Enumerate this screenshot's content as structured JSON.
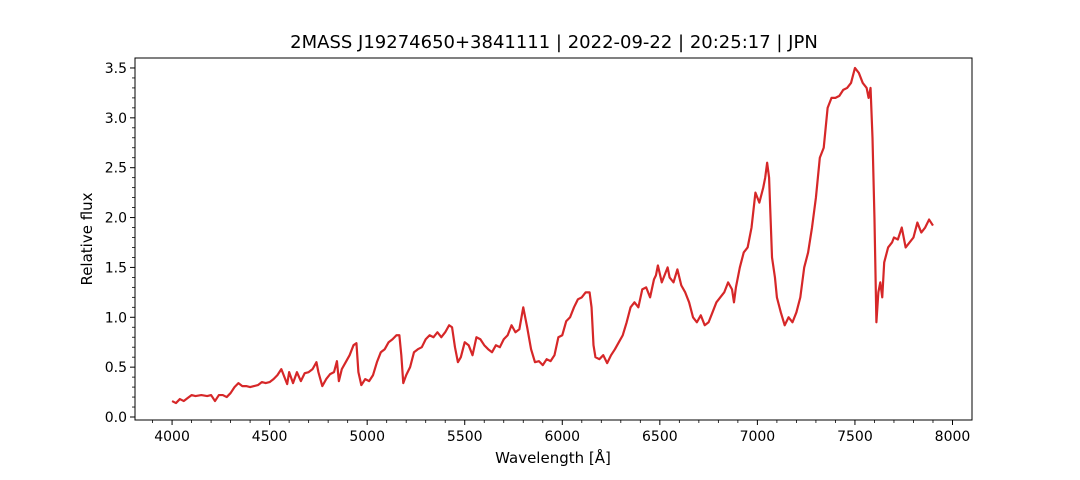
{
  "chart_data": {
    "type": "line",
    "title": "2MASS J19274650+3841111 | 2022-09-22 | 20:25:17 | JPN",
    "xlabel": "Wavelength [Å]",
    "ylabel": "Relative flux",
    "xlim": [
      3810,
      8100
    ],
    "ylim": [
      -0.03,
      3.6
    ],
    "xticks": [
      4000,
      4500,
      5000,
      5500,
      6000,
      6500,
      7000,
      7500,
      8000
    ],
    "yticks": [
      0.0,
      0.5,
      1.0,
      1.5,
      2.0,
      2.5,
      3.0,
      3.5
    ],
    "xtick_labels": [
      "4000",
      "4500",
      "5000",
      "5500",
      "6000",
      "6500",
      "7000",
      "7500",
      "8000"
    ],
    "ytick_labels": [
      "0.0",
      "0.5",
      "1.0",
      "1.5",
      "2.0",
      "2.5",
      "3.0",
      "3.5"
    ],
    "grid": false,
    "line_color": "#d62728",
    "series": [
      {
        "x": [
          4000,
          4020,
          4040,
          4060,
          4080,
          4100,
          4120,
          4150,
          4180,
          4200,
          4220,
          4240,
          4260,
          4280,
          4300,
          4320,
          4340,
          4360,
          4380,
          4400,
          4420,
          4440,
          4460,
          4480,
          4500,
          4520,
          4540,
          4560,
          4580,
          4590,
          4600,
          4620,
          4640,
          4660,
          4680,
          4700,
          4720,
          4740,
          4750,
          4770,
          4790,
          4810,
          4830,
          4845,
          4855,
          4870,
          4890,
          4910,
          4930,
          4945,
          4955,
          4970,
          4990,
          5010,
          5030,
          5050,
          5070,
          5090,
          5110,
          5130,
          5150,
          5165,
          5175,
          5185,
          5200,
          5220,
          5240,
          5260,
          5280,
          5300,
          5320,
          5340,
          5360,
          5380,
          5400,
          5420,
          5435,
          5450,
          5465,
          5480,
          5500,
          5520,
          5540,
          5560,
          5580,
          5600,
          5620,
          5640,
          5660,
          5680,
          5700,
          5720,
          5740,
          5760,
          5780,
          5800,
          5810,
          5820,
          5840,
          5860,
          5880,
          5900,
          5920,
          5940,
          5960,
          5980,
          6000,
          6020,
          6040,
          6060,
          6080,
          6100,
          6120,
          6140,
          6150,
          6160,
          6170,
          6190,
          6210,
          6230,
          6250,
          6270,
          6290,
          6310,
          6330,
          6350,
          6370,
          6390,
          6410,
          6430,
          6450,
          6470,
          6480,
          6490,
          6510,
          6530,
          6540,
          6550,
          6570,
          6590,
          6610,
          6630,
          6650,
          6670,
          6690,
          6710,
          6730,
          6750,
          6770,
          6790,
          6810,
          6830,
          6850,
          6870,
          6880,
          6890,
          6910,
          6930,
          6950,
          6970,
          6990,
          7010,
          7030,
          7040,
          7050,
          7060,
          7075,
          7090,
          7100,
          7120,
          7140,
          7160,
          7180,
          7200,
          7220,
          7240,
          7260,
          7280,
          7300,
          7320,
          7340,
          7360,
          7380,
          7400,
          7420,
          7440,
          7460,
          7480,
          7500,
          7520,
          7540,
          7560,
          7570,
          7580,
          7590,
          7600,
          7610,
          7620,
          7630,
          7640,
          7650,
          7670,
          7690,
          7700,
          7720,
          7740,
          7760,
          7780,
          7800,
          7820,
          7840,
          7860,
          7880,
          7900
        ],
        "y": [
          0.16,
          0.14,
          0.18,
          0.16,
          0.19,
          0.22,
          0.21,
          0.22,
          0.21,
          0.22,
          0.16,
          0.22,
          0.22,
          0.2,
          0.24,
          0.3,
          0.34,
          0.31,
          0.31,
          0.3,
          0.31,
          0.32,
          0.35,
          0.34,
          0.35,
          0.38,
          0.42,
          0.48,
          0.38,
          0.33,
          0.45,
          0.34,
          0.45,
          0.36,
          0.44,
          0.45,
          0.48,
          0.55,
          0.45,
          0.31,
          0.38,
          0.43,
          0.45,
          0.56,
          0.36,
          0.48,
          0.55,
          0.62,
          0.72,
          0.74,
          0.45,
          0.32,
          0.38,
          0.36,
          0.42,
          0.55,
          0.65,
          0.68,
          0.75,
          0.78,
          0.82,
          0.82,
          0.62,
          0.34,
          0.42,
          0.5,
          0.65,
          0.68,
          0.7,
          0.78,
          0.82,
          0.8,
          0.85,
          0.8,
          0.85,
          0.92,
          0.9,
          0.7,
          0.55,
          0.6,
          0.75,
          0.72,
          0.62,
          0.8,
          0.78,
          0.72,
          0.68,
          0.65,
          0.72,
          0.7,
          0.78,
          0.82,
          0.92,
          0.85,
          0.88,
          1.1,
          1.0,
          0.9,
          0.68,
          0.55,
          0.56,
          0.52,
          0.58,
          0.56,
          0.62,
          0.8,
          0.82,
          0.96,
          1.0,
          1.1,
          1.18,
          1.2,
          1.25,
          1.25,
          1.1,
          0.72,
          0.6,
          0.58,
          0.62,
          0.54,
          0.62,
          0.68,
          0.75,
          0.82,
          0.95,
          1.1,
          1.15,
          1.1,
          1.28,
          1.3,
          1.2,
          1.38,
          1.42,
          1.52,
          1.35,
          1.45,
          1.5,
          1.4,
          1.35,
          1.48,
          1.32,
          1.25,
          1.15,
          1.0,
          0.95,
          1.02,
          0.92,
          0.95,
          1.05,
          1.15,
          1.2,
          1.25,
          1.35,
          1.28,
          1.15,
          1.3,
          1.5,
          1.65,
          1.7,
          1.9,
          2.25,
          2.15,
          2.3,
          2.4,
          2.55,
          2.4,
          1.6,
          1.4,
          1.2,
          1.05,
          0.92,
          1.0,
          0.95,
          1.05,
          1.2,
          1.5,
          1.65,
          1.9,
          2.2,
          2.6,
          2.7,
          3.1,
          3.2,
          3.2,
          3.22,
          3.28,
          3.3,
          3.35,
          3.5,
          3.45,
          3.35,
          3.3,
          3.2,
          3.3,
          2.8,
          2.0,
          0.95,
          1.25,
          1.35,
          1.2,
          1.55,
          1.7,
          1.75,
          1.8,
          1.78,
          1.9,
          1.7,
          1.75,
          1.8,
          1.95,
          1.85,
          1.9,
          1.98,
          1.92
        ]
      }
    ]
  }
}
